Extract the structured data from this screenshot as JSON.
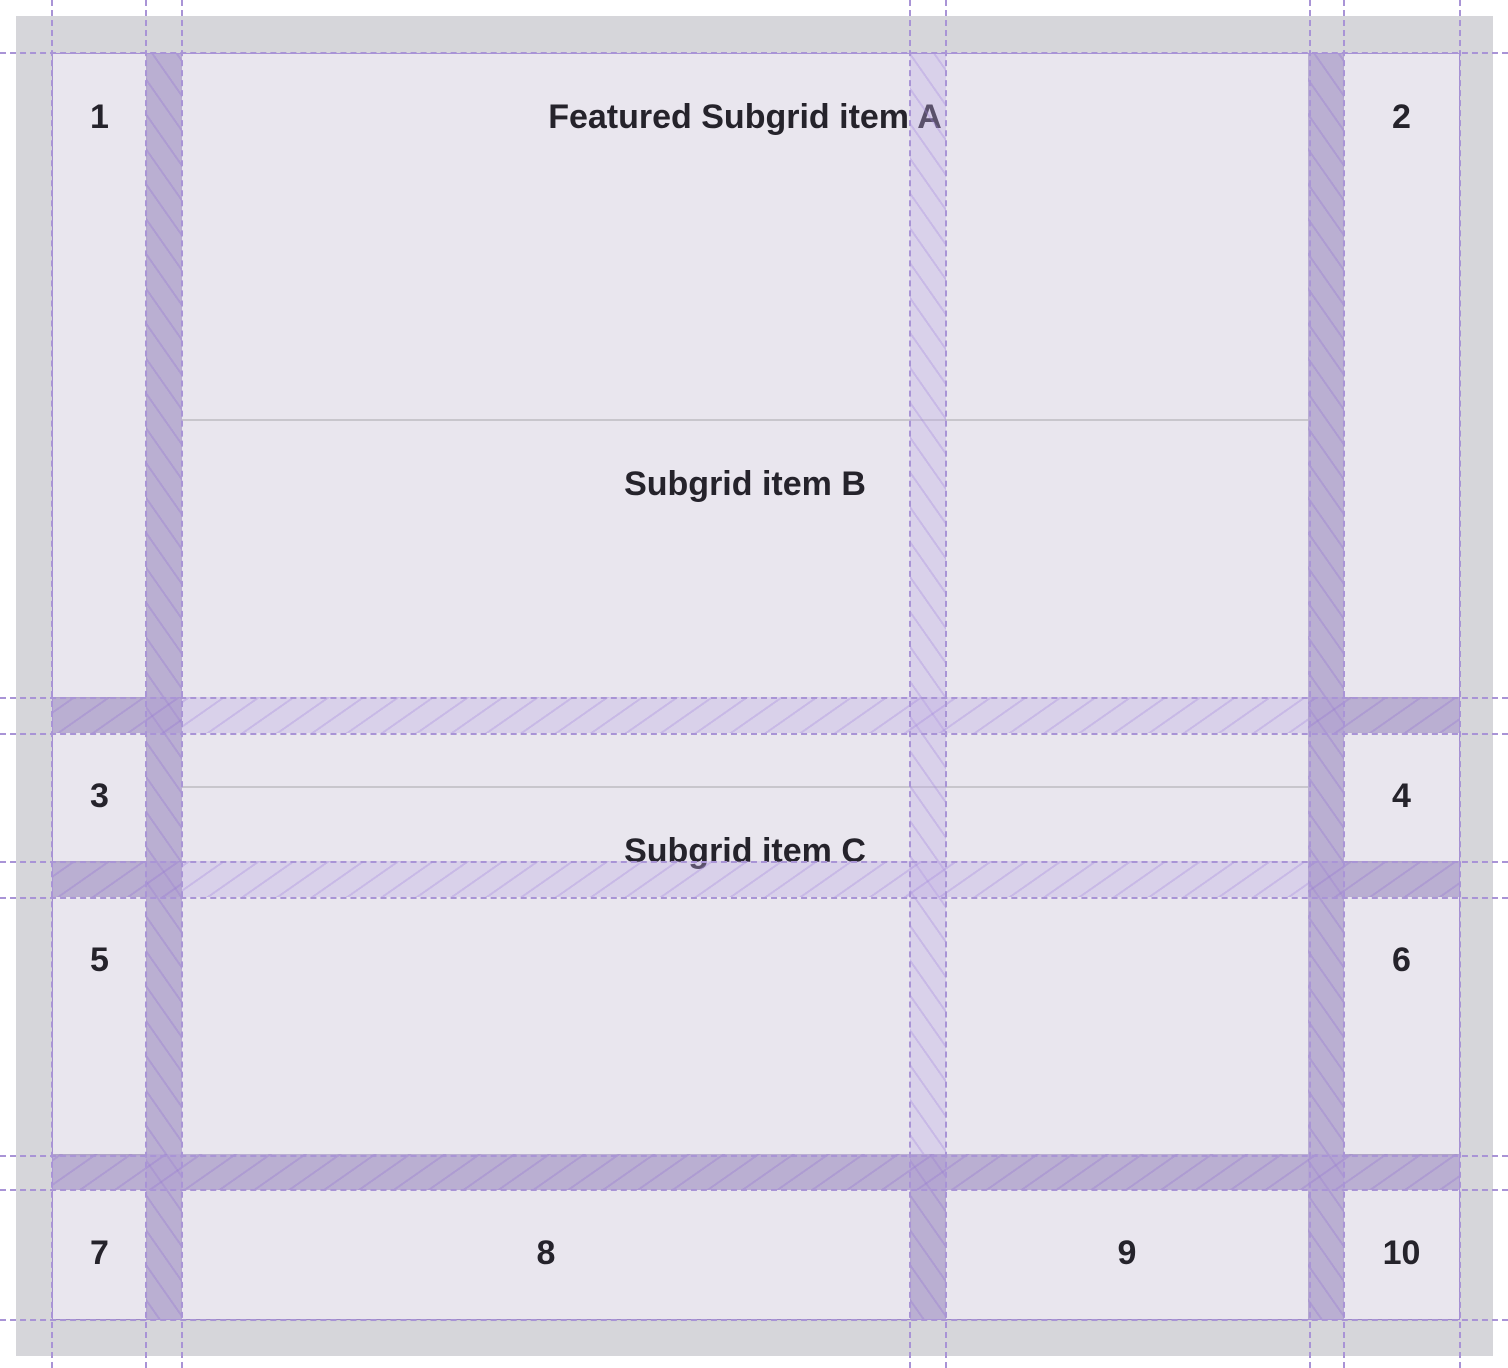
{
  "items": {
    "i1": "1",
    "i2": "2",
    "i3": "3",
    "i4": "4",
    "i5": "5",
    "i6": "6",
    "i7": "7",
    "i8": "8",
    "i9": "9",
    "i10": "10"
  },
  "subgrid": {
    "a": "Featured Subgrid item A",
    "b": "Subgrid item B",
    "c": "Subgrid item C"
  },
  "colors": {
    "item": "#e9e6ee",
    "overlay": "#a994d6",
    "background": "#d6d6da"
  }
}
